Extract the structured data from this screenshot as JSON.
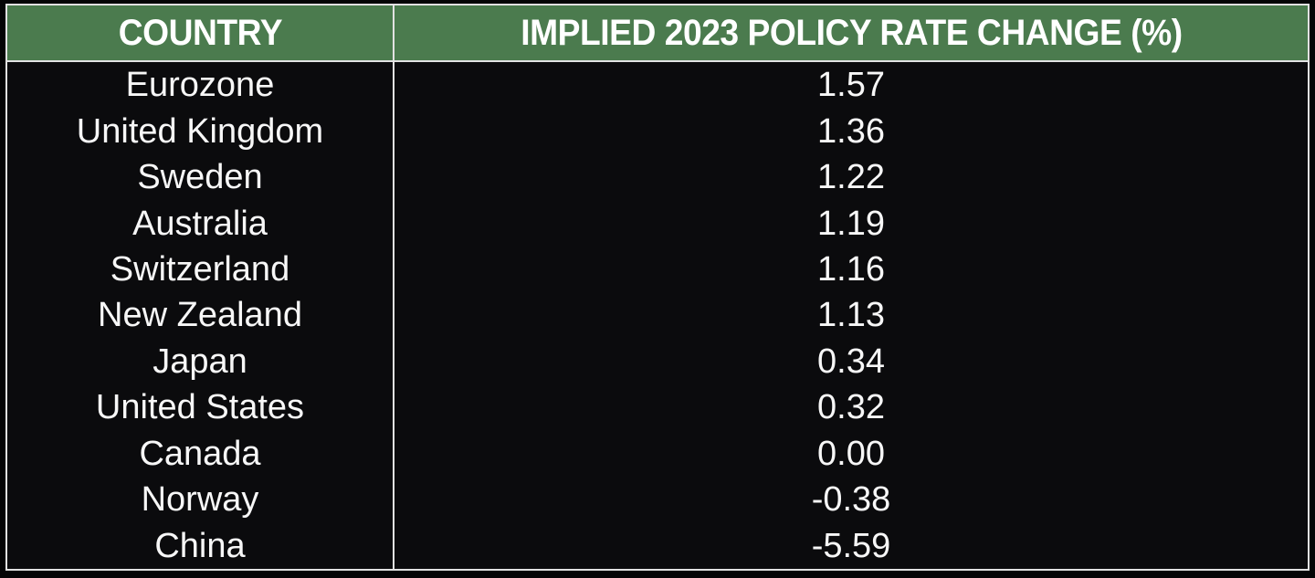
{
  "colors": {
    "page_bg": "#050506",
    "cell_bg": "#0b0b0d",
    "header_bg": "#4b7b4e",
    "border": "#e2e2e2",
    "header_text": "#ffffff",
    "body_text": "#f7f7f7"
  },
  "chart_data": {
    "type": "table",
    "columns": [
      "COUNTRY",
      "IMPLIED 2023 POLICY RATE CHANGE (%)"
    ],
    "rows": [
      {
        "country": "Eurozone",
        "value": "1.57"
      },
      {
        "country": "United Kingdom",
        "value": "1.36"
      },
      {
        "country": "Sweden",
        "value": "1.22"
      },
      {
        "country": "Australia",
        "value": "1.19"
      },
      {
        "country": "Switzerland",
        "value": "1.16"
      },
      {
        "country": "New Zealand",
        "value": "1.13"
      },
      {
        "country": "Japan",
        "value": "0.34"
      },
      {
        "country": "United States",
        "value": "0.32"
      },
      {
        "country": "Canada",
        "value": "0.00"
      },
      {
        "country": "Norway",
        "value": "-0.38"
      },
      {
        "country": "China",
        "value": "-5.59"
      }
    ]
  }
}
